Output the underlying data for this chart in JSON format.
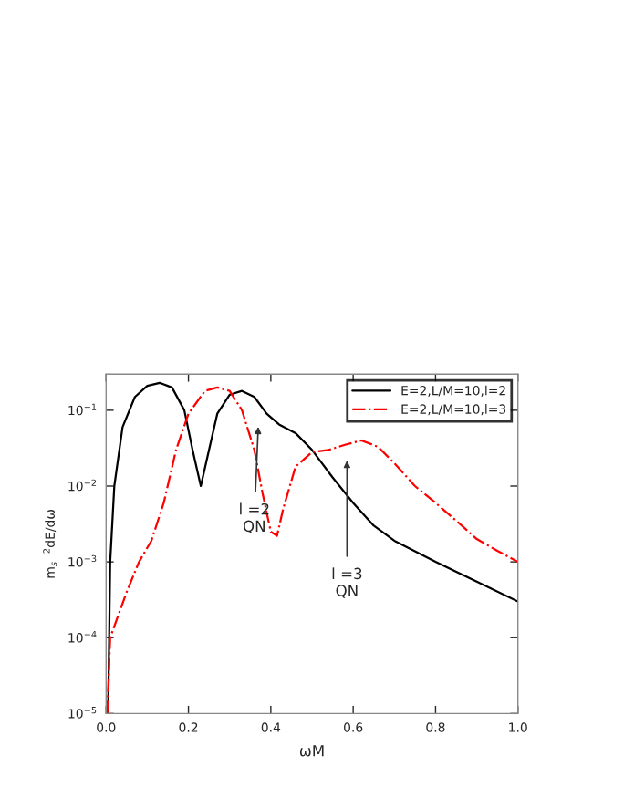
{
  "chart_data": {
    "type": "line",
    "xlabel": "ωM",
    "ylabel": "m$_{s}$$^{−2}$dE/dω",
    "log": "y",
    "xlim": [
      0,
      1
    ],
    "ylim": [
      1e-05,
      0.3
    ],
    "xticks": [
      {
        "value": 0,
        "label": "0.0"
      },
      {
        "value": 0.2,
        "label": "0.2"
      },
      {
        "value": 0.4,
        "label": "0.4"
      },
      {
        "value": 0.6,
        "label": "0.6"
      },
      {
        "value": 0.8,
        "label": "0.8"
      },
      {
        "value": 1,
        "label": "1.0"
      }
    ],
    "yticks": [
      {
        "value": 1e-05,
        "label": "10$^{−5}$"
      },
      {
        "value": 0.0001,
        "label": "10$^{−4}$"
      },
      {
        "value": 0.001,
        "label": "10$^{−3}$"
      },
      {
        "value": 0.01,
        "label": "10$^{−2}$"
      },
      {
        "value": 0.1,
        "label": "10$^{−1}$"
      }
    ],
    "legend": "top right",
    "grid": false,
    "series": [
      {
        "name": "E=2,L/M=10,l=2",
        "color": "#000000",
        "line_style": "solid",
        "x": [
          0.005,
          0.01,
          0.02,
          0.04,
          0.07,
          0.1,
          0.13,
          0.16,
          0.19,
          0.21,
          0.23,
          0.25,
          0.27,
          0.3,
          0.33,
          0.36,
          0.39,
          0.42,
          0.46,
          0.5,
          0.55,
          0.6,
          0.65,
          0.7,
          0.8,
          0.9,
          1.0
        ],
        "values": [
          1e-05,
          0.001,
          0.01,
          0.06,
          0.15,
          0.21,
          0.23,
          0.2,
          0.1,
          0.03,
          0.01,
          0.03,
          0.09,
          0.16,
          0.18,
          0.15,
          0.09,
          0.065,
          0.05,
          0.03,
          0.013,
          0.006,
          0.003,
          0.0019,
          0.001,
          0.00055,
          0.0003
        ]
      },
      {
        "name": "E=2,L/M=10,l=3",
        "color": "#ff0000",
        "line_style": "dashdot",
        "x": [
          0.003,
          0.01,
          0.03,
          0.05,
          0.08,
          0.11,
          0.14,
          0.17,
          0.2,
          0.24,
          0.27,
          0.3,
          0.33,
          0.36,
          0.38,
          0.4,
          0.415,
          0.43,
          0.46,
          0.5,
          0.54,
          0.58,
          0.62,
          0.66,
          0.7,
          0.75,
          0.8,
          0.85,
          0.9,
          0.95,
          1.0
        ],
        "values": [
          1e-05,
          0.0001,
          0.0002,
          0.0004,
          0.001,
          0.0019,
          0.006,
          0.03,
          0.09,
          0.18,
          0.2,
          0.18,
          0.1,
          0.03,
          0.008,
          0.0025,
          0.0022,
          0.005,
          0.018,
          0.028,
          0.03,
          0.035,
          0.04,
          0.033,
          0.02,
          0.01,
          0.006,
          0.0035,
          0.002,
          0.0014,
          0.001
        ]
      }
    ],
    "annotations": [
      "l =2\nQN",
      "l =3\nQN"
    ]
  }
}
